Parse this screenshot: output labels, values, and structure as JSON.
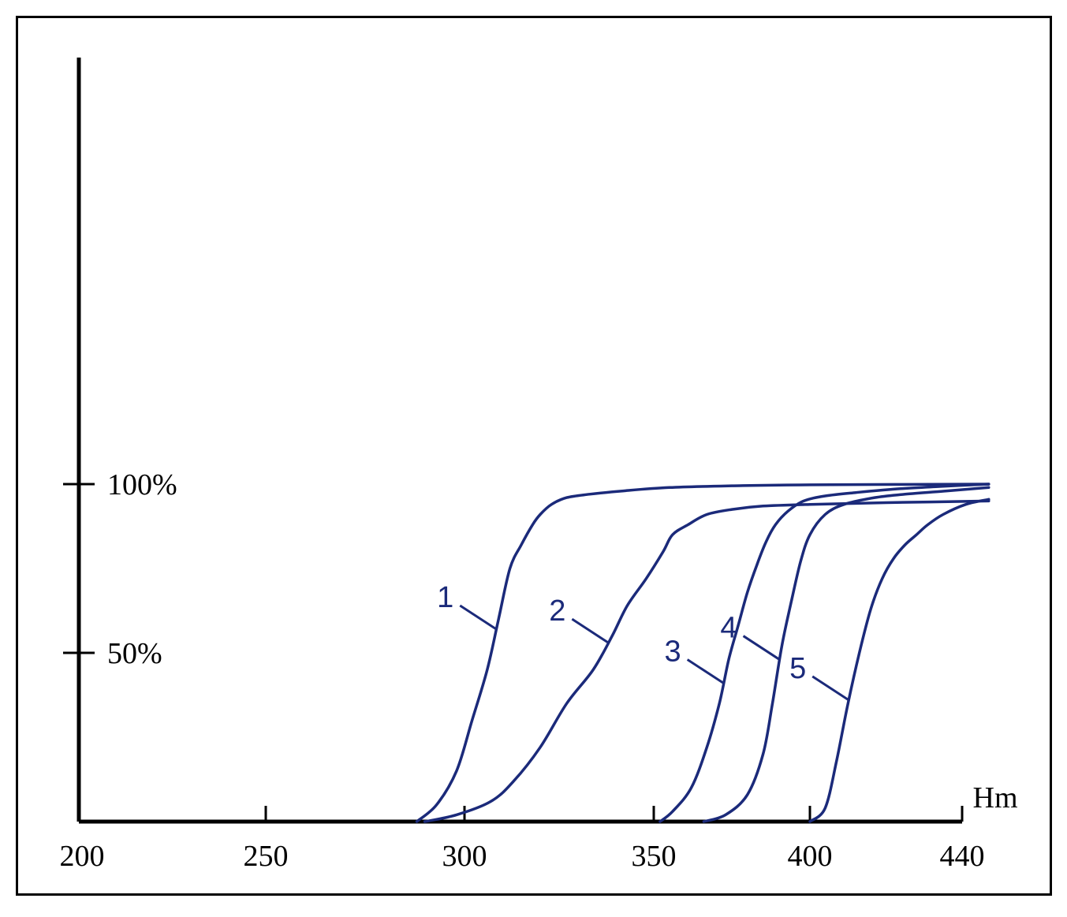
{
  "chart_data": {
    "type": "line",
    "x_tick_labels": [
      "200",
      "250",
      "300",
      "350",
      "400",
      "440"
    ],
    "x_ticks": [
      200,
      250,
      300,
      350,
      400,
      440
    ],
    "y_tick_labels": [
      "50%",
      "100%"
    ],
    "y_ticks": [
      50,
      100
    ],
    "xlabel": "Hm",
    "ylabel": "",
    "xlim": [
      200,
      440
    ],
    "ylim": [
      0,
      100
    ],
    "grid": false,
    "line_color": "#1b2a7a",
    "series": [
      {
        "name": "1",
        "x": [
          288,
          293,
          298,
          302,
          306,
          309,
          312,
          315,
          318,
          320,
          323,
          327,
          333,
          342,
          355,
          375,
          400,
          447
        ],
        "y": [
          0,
          5,
          15,
          30,
          45,
          60,
          75,
          82,
          88,
          91,
          94,
          96,
          97,
          98,
          99,
          99.5,
          99.8,
          100
        ]
      },
      {
        "name": "2",
        "x": [
          290,
          298,
          307,
          313,
          320,
          327,
          334,
          339,
          343,
          348,
          353,
          356,
          361,
          367,
          375,
          385,
          400,
          420,
          447
        ],
        "y": [
          0,
          2,
          6,
          12,
          22,
          35,
          45,
          55,
          64,
          72,
          80,
          85,
          88,
          91,
          92.5,
          93.5,
          94,
          94.5,
          95
        ]
      },
      {
        "name": "3",
        "x": [
          352,
          356,
          362,
          367,
          371,
          374,
          377,
          380,
          383,
          386,
          389,
          393,
          398,
          404,
          412,
          422,
          434,
          447
        ],
        "y": [
          0,
          3,
          10,
          22,
          35,
          48,
          58,
          68,
          76,
          83,
          88,
          92,
          95,
          96.5,
          97.5,
          98.5,
          99.3,
          100
        ]
      },
      {
        "name": "4",
        "x": [
          366,
          373,
          380,
          385,
          388,
          391,
          394,
          397,
          400,
          404,
          409,
          417,
          425,
          436,
          447
        ],
        "y": [
          0,
          2,
          8,
          20,
          35,
          52,
          65,
          77,
          85,
          91,
          94,
          96,
          97,
          98,
          99
        ]
      },
      {
        "name": "5",
        "x": [
          400,
          404,
          407,
          410,
          413,
          416,
          419,
          422,
          425,
          428,
          431,
          435,
          441,
          447
        ],
        "y": [
          0,
          4,
          18,
          35,
          50,
          63,
          72,
          78,
          82,
          85,
          88,
          91,
          94,
          95.5
        ]
      }
    ],
    "label_pointers": [
      {
        "series": "1",
        "y": 57
      },
      {
        "series": "2",
        "y": 53
      },
      {
        "series": "3",
        "y": 41
      },
      {
        "series": "4",
        "y": 48
      },
      {
        "series": "5",
        "y": 36
      }
    ]
  }
}
